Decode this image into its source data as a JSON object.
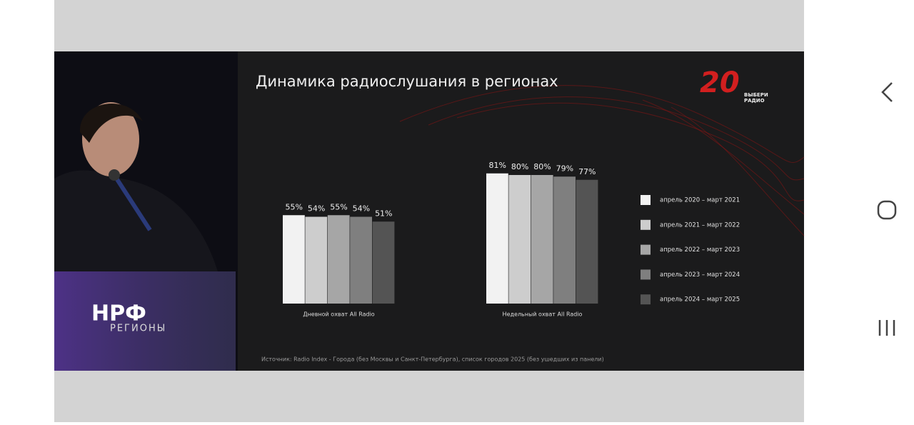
{
  "chart_data": {
    "type": "bar",
    "title": "Динамика радиослушания в регионах",
    "categories": [
      "Дневной охват All Radio",
      "Недельный охват All Radio"
    ],
    "series": [
      {
        "name": "апрель 2020 – март 2021",
        "color": "#f2f2f2",
        "values": [
          55,
          81
        ],
        "value_labels": [
          "55%",
          "81%"
        ]
      },
      {
        "name": "апрель 2021 – март 2022",
        "color": "#cdcdcd",
        "values": [
          54,
          80
        ],
        "value_labels": [
          "54%",
          "80%"
        ]
      },
      {
        "name": "апрель 2022 – март 2023",
        "color": "#a6a6a6",
        "values": [
          55,
          80
        ],
        "value_labels": [
          "55%",
          "80%"
        ]
      },
      {
        "name": "апрель 2023 – март 2024",
        "color": "#7f7f7f",
        "values": [
          54,
          79
        ],
        "value_labels": [
          "54%",
          "79%"
        ]
      },
      {
        "name": "апрель 2024 – март 2025",
        "color": "#545454",
        "values": [
          51,
          77
        ],
        "value_labels": [
          "51%",
          "77%"
        ]
      }
    ],
    "source": "Источник: Radio Index - Города (без Москвы и Санкт-Петербурга), список городов 2025 (без ушедших из панели)"
  },
  "logo": {
    "number": "20",
    "line1": "ВЫБЕРИ",
    "line2": "РАДИО"
  },
  "podium": {
    "brand": "НРФ",
    "subtitle": "РЕГИОНЫ"
  }
}
